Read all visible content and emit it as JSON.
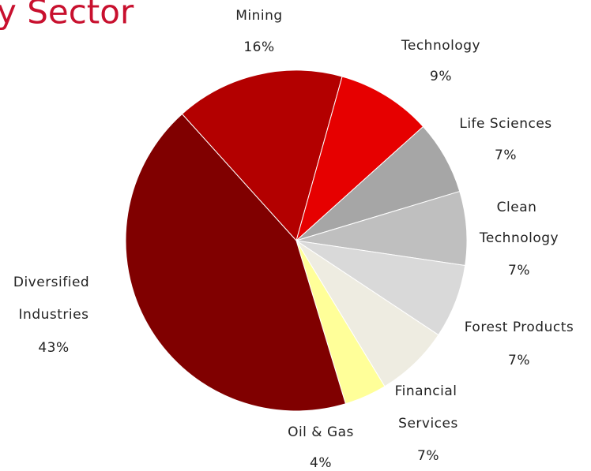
{
  "chart_data": {
    "type": "pie",
    "title": "y Sector",
    "categories": [
      "Mining",
      "Technology",
      "Life Sciences",
      "Clean Technology",
      "Forest Products",
      "Financial Services",
      "Oil & Gas",
      "Diversified Industries"
    ],
    "values": [
      16,
      9,
      7,
      7,
      7,
      7,
      4,
      43
    ],
    "value_labels": [
      "16%",
      "9%",
      "7%",
      "7%",
      "7%",
      "7%",
      "4%",
      "43%"
    ],
    "colors": [
      "#b30000",
      "#e60000",
      "#a6a6a6",
      "#bfbfbf",
      "#d9d9d9",
      "#eeece1",
      "#ffff99",
      "#800000"
    ]
  }
}
